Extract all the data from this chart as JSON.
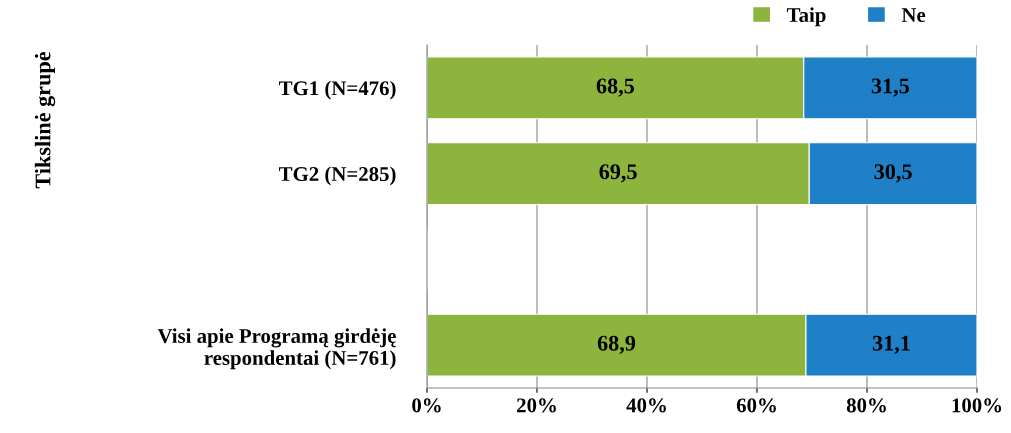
{
  "chart_data": {
    "type": "bar",
    "orientation": "horizontal",
    "stacked": true,
    "categories": [
      "TG1 (N=476)",
      "TG2 (N=285)",
      null,
      "Visi apie Programą girdėję\nrespondentai (N=761)"
    ],
    "series": [
      {
        "name": "Taip",
        "color": "#8db43c",
        "values": [
          68.5,
          69.5,
          null,
          68.9
        ],
        "value_labels": [
          "68,5",
          "69,5",
          null,
          "68,9"
        ]
      },
      {
        "name": "Ne",
        "color": "#1f80c8",
        "values": [
          31.5,
          30.5,
          null,
          31.1
        ],
        "value_labels": [
          "31,5",
          "30,5",
          null,
          "31,1"
        ]
      }
    ],
    "xlim": [
      0,
      100
    ],
    "xticks": [
      {
        "value": 0,
        "label": "0%"
      },
      {
        "value": 20,
        "label": "20%"
      },
      {
        "value": 40,
        "label": "40%"
      },
      {
        "value": 60,
        "label": "60%"
      },
      {
        "value": 80,
        "label": "80%"
      },
      {
        "value": 100,
        "label": "100%"
      }
    ],
    "grid": "x",
    "legend": "top right",
    "annotations": [
      "Tikslinė grupė"
    ]
  }
}
